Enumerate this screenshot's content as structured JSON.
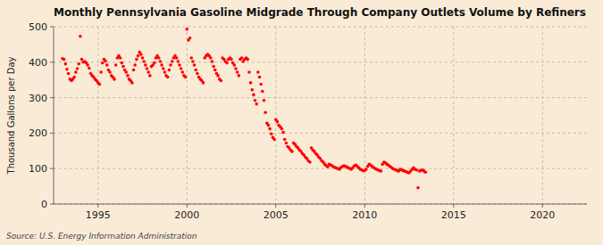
{
  "chart_data": {
    "type": "scatter",
    "title": "Monthly Pennsylvania Gasoline Midgrade Through Company Outlets Volume by Refiners",
    "ylabel": "Thousand Gallons per Day",
    "source": "Source: U.S. Energy Information Administration",
    "xlim": [
      1992.5,
      2022.5
    ],
    "ylim": [
      0,
      500
    ],
    "xticks": [
      1995,
      2000,
      2005,
      2010,
      2015,
      2020
    ],
    "yticks": [
      0,
      100,
      200,
      300,
      400,
      500
    ],
    "grid": true,
    "color": "#ff0000",
    "marker": "circle",
    "x": [
      1993.0,
      1993.083,
      1993.167,
      1993.25,
      1993.333,
      1993.417,
      1993.5,
      1993.583,
      1993.667,
      1993.75,
      1993.833,
      1993.917,
      1994.0,
      1994.083,
      1994.167,
      1994.25,
      1994.333,
      1994.417,
      1994.5,
      1994.583,
      1994.667,
      1994.75,
      1994.833,
      1994.917,
      1995.0,
      1995.083,
      1995.167,
      1995.25,
      1995.333,
      1995.417,
      1995.5,
      1995.583,
      1995.667,
      1995.75,
      1995.833,
      1995.917,
      1996.0,
      1996.083,
      1996.167,
      1996.25,
      1996.333,
      1996.417,
      1996.5,
      1996.583,
      1996.667,
      1996.75,
      1996.833,
      1996.917,
      1997.0,
      1997.083,
      1997.167,
      1997.25,
      1997.333,
      1997.417,
      1997.5,
      1997.583,
      1997.667,
      1997.75,
      1997.833,
      1997.917,
      1998.0,
      1998.083,
      1998.167,
      1998.25,
      1998.333,
      1998.417,
      1998.5,
      1998.583,
      1998.667,
      1998.75,
      1998.833,
      1998.917,
      1999.0,
      1999.083,
      1999.167,
      1999.25,
      1999.333,
      1999.417,
      1999.5,
      1999.583,
      1999.667,
      1999.75,
      1999.833,
      1999.917,
      2000.0,
      2000.083,
      2000.167,
      2000.25,
      2000.333,
      2000.417,
      2000.5,
      2000.583,
      2000.667,
      2000.75,
      2000.833,
      2000.917,
      2001.0,
      2001.083,
      2001.167,
      2001.25,
      2001.333,
      2001.417,
      2001.5,
      2001.583,
      2001.667,
      2001.75,
      2001.833,
      2001.917,
      2002.0,
      2002.083,
      2002.167,
      2002.25,
      2002.333,
      2002.417,
      2002.5,
      2002.583,
      2002.667,
      2002.75,
      2002.833,
      2002.917,
      2003.0,
      2003.083,
      2003.167,
      2003.25,
      2003.333,
      2003.417,
      2003.5,
      2003.583,
      2003.667,
      2003.75,
      2003.833,
      2003.917,
      2004.0,
      2004.083,
      2004.167,
      2004.25,
      2004.333,
      2004.417,
      2004.5,
      2004.583,
      2004.667,
      2004.75,
      2004.833,
      2004.917,
      2005.0,
      2005.083,
      2005.167,
      2005.25,
      2005.333,
      2005.417,
      2005.5,
      2005.583,
      2005.667,
      2005.75,
      2005.833,
      2005.917,
      2006.0,
      2006.083,
      2006.167,
      2006.25,
      2006.333,
      2006.417,
      2006.5,
      2006.583,
      2006.667,
      2006.75,
      2006.833,
      2006.917,
      2007.0,
      2007.083,
      2007.167,
      2007.25,
      2007.333,
      2007.417,
      2007.5,
      2007.583,
      2007.667,
      2007.75,
      2007.833,
      2007.917,
      2008.0,
      2008.083,
      2008.167,
      2008.25,
      2008.333,
      2008.417,
      2008.5,
      2008.583,
      2008.667,
      2008.75,
      2008.833,
      2008.917,
      2009.0,
      2009.083,
      2009.167,
      2009.25,
      2009.333,
      2009.417,
      2009.5,
      2009.583,
      2009.667,
      2009.75,
      2009.833,
      2009.917,
      2010.0,
      2010.083,
      2010.167,
      2010.25,
      2010.333,
      2010.417,
      2010.5,
      2010.583,
      2010.667,
      2010.75,
      2010.833,
      2010.917,
      2011.0,
      2011.083,
      2011.167,
      2011.25,
      2011.333,
      2011.417,
      2011.5,
      2011.583,
      2011.667,
      2011.75,
      2011.833,
      2011.917,
      2012.0,
      2012.083,
      2012.167,
      2012.25,
      2012.333,
      2012.417,
      2012.5,
      2012.583,
      2012.667,
      2012.75,
      2012.833,
      2012.917,
      2013.0,
      2013.083,
      2013.167,
      2013.25,
      2013.333,
      2013.417
    ],
    "values": [
      410,
      408,
      395,
      380,
      368,
      352,
      348,
      352,
      358,
      372,
      382,
      395,
      473,
      408,
      400,
      402,
      398,
      392,
      383,
      368,
      362,
      358,
      352,
      348,
      342,
      338,
      372,
      398,
      408,
      403,
      392,
      378,
      372,
      362,
      358,
      352,
      392,
      412,
      418,
      412,
      398,
      388,
      378,
      372,
      362,
      352,
      348,
      342,
      378,
      392,
      408,
      418,
      428,
      422,
      412,
      402,
      392,
      382,
      372,
      362,
      388,
      392,
      398,
      412,
      418,
      412,
      402,
      392,
      382,
      372,
      362,
      358,
      378,
      392,
      402,
      412,
      418,
      412,
      402,
      392,
      382,
      372,
      362,
      358,
      493,
      462,
      468,
      412,
      402,
      392,
      378,
      368,
      358,
      352,
      348,
      342,
      412,
      418,
      422,
      418,
      412,
      402,
      388,
      378,
      368,
      362,
      352,
      348,
      412,
      408,
      402,
      398,
      408,
      412,
      408,
      398,
      392,
      382,
      372,
      362,
      408,
      412,
      402,
      408,
      412,
      408,
      372,
      342,
      322,
      308,
      292,
      282,
      372,
      358,
      338,
      318,
      292,
      258,
      228,
      222,
      212,
      198,
      188,
      182,
      238,
      232,
      222,
      218,
      212,
      202,
      182,
      172,
      162,
      158,
      152,
      148,
      172,
      168,
      162,
      158,
      152,
      148,
      142,
      138,
      132,
      128,
      122,
      118,
      158,
      152,
      148,
      142,
      138,
      132,
      128,
      122,
      118,
      112,
      108,
      105,
      112,
      110,
      108,
      105,
      103,
      101,
      100,
      98,
      103,
      106,
      108,
      106,
      104,
      102,
      100,
      98,
      103,
      108,
      110,
      106,
      102,
      98,
      96,
      94,
      95,
      98,
      106,
      112,
      110,
      106,
      103,
      100,
      98,
      96,
      94,
      93,
      112,
      118,
      116,
      112,
      110,
      106,
      103,
      100,
      98,
      96,
      94,
      93,
      98,
      96,
      94,
      93,
      91,
      89,
      88,
      93,
      98,
      102,
      98,
      96,
      46,
      93,
      95,
      96,
      93,
      90
    ]
  }
}
